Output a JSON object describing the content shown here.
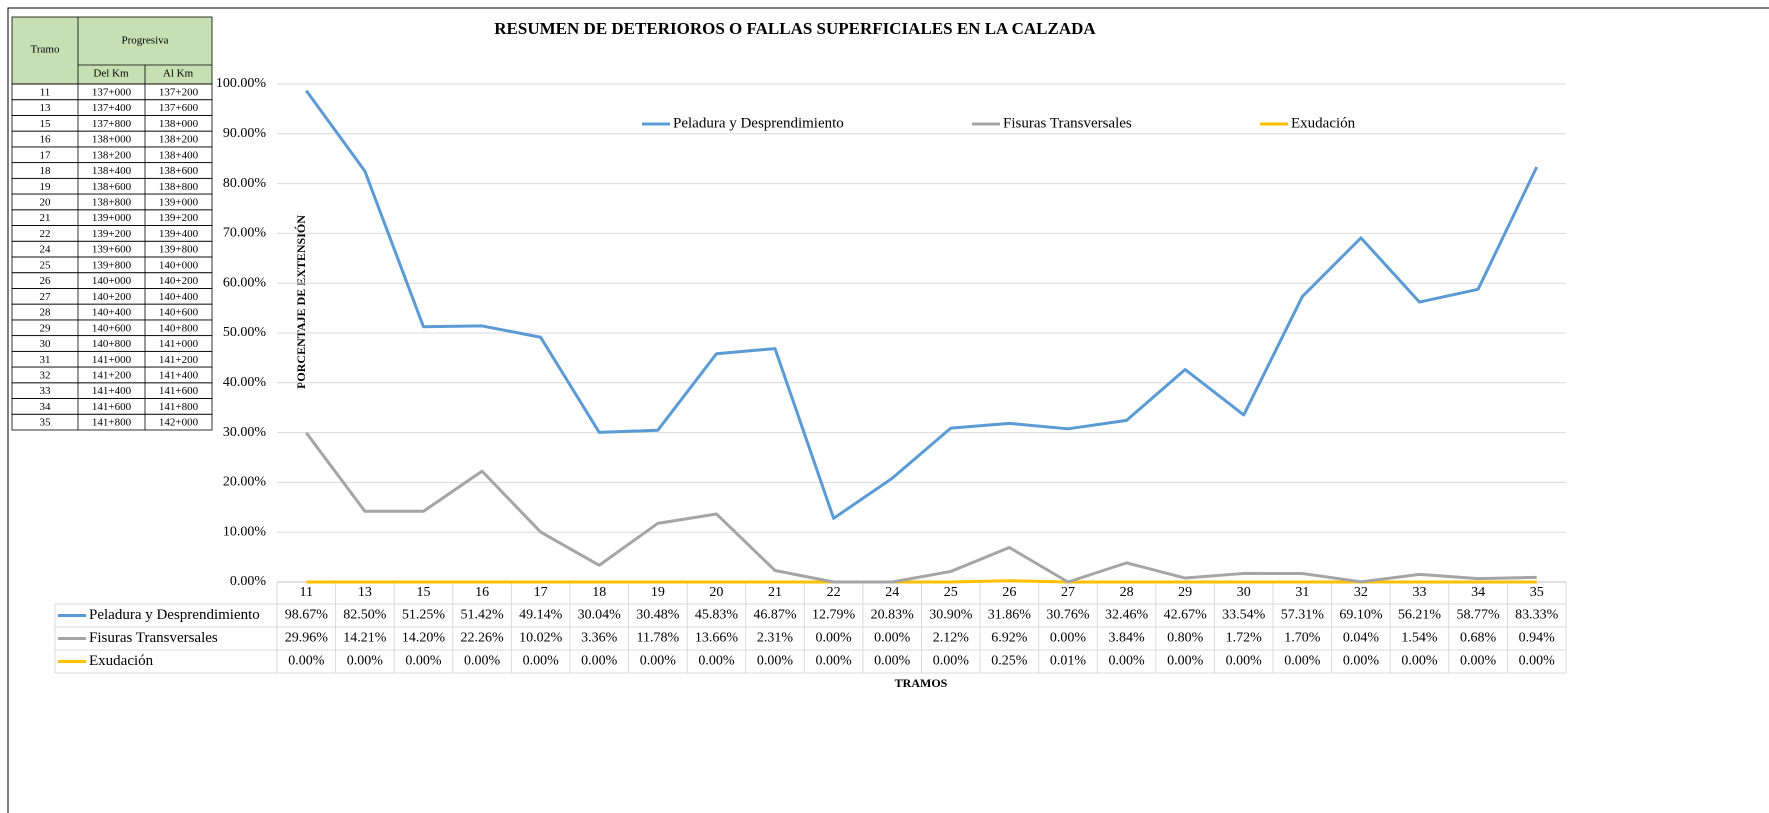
{
  "chart_data": {
    "type": "line",
    "title": "RESUMEN DE DETERIOROS O FALLAS SUPERFICIALES EN LA CALZADA",
    "ylabel": "PORCENTAJE DE EXTENSIÓN",
    "xlabel": "TRAMOS",
    "categories": [
      "11",
      "13",
      "15",
      "16",
      "17",
      "18",
      "19",
      "20",
      "21",
      "22",
      "24",
      "25",
      "26",
      "27",
      "28",
      "29",
      "30",
      "31",
      "32",
      "33",
      "34",
      "35"
    ],
    "series": [
      {
        "name": "Peladura y Desprendimiento",
        "color": "#5b9bd5",
        "values": [
          98.67,
          82.5,
          51.25,
          51.42,
          49.14,
          30.04,
          30.48,
          45.83,
          46.87,
          12.79,
          20.83,
          30.9,
          31.86,
          30.76,
          32.46,
          42.67,
          33.54,
          57.31,
          69.1,
          56.21,
          58.77,
          83.33
        ],
        "value_labels": [
          "98.67%",
          "82.50%",
          "51.25%",
          "51.42%",
          "49.14%",
          "30.04%",
          "30.48%",
          "45.83%",
          "46.87%",
          "12.79%",
          "20.83%",
          "30.90%",
          "31.86%",
          "30.76%",
          "32.46%",
          "42.67%",
          "33.54%",
          "57.31%",
          "69.10%",
          "56.21%",
          "58.77%",
          "83.33%"
        ]
      },
      {
        "name": "Fisuras Transversales",
        "color": "#a5a5a5",
        "values": [
          29.96,
          14.21,
          14.2,
          22.26,
          10.02,
          3.36,
          11.78,
          13.66,
          2.31,
          0,
          0,
          2.12,
          6.92,
          0,
          3.84,
          0.8,
          1.72,
          1.7,
          0.04,
          1.54,
          0.68,
          0.94
        ],
        "value_labels": [
          "29.96%",
          "14.21%",
          "14.20%",
          "22.26%",
          "10.02%",
          "3.36%",
          "11.78%",
          "13.66%",
          "2.31%",
          "0.00%",
          "0.00%",
          "2.12%",
          "6.92%",
          "0.00%",
          "3.84%",
          "0.80%",
          "1.72%",
          "1.70%",
          "0.04%",
          "1.54%",
          "0.68%",
          "0.94%"
        ]
      },
      {
        "name": "Exudación",
        "color": "#ffc000",
        "values": [
          0,
          0,
          0,
          0,
          0,
          0,
          0,
          0,
          0,
          0,
          0,
          0,
          0.25,
          0.01,
          0,
          0,
          0,
          0,
          0,
          0,
          0,
          0
        ],
        "value_labels": [
          "0.00%",
          "0.00%",
          "0.00%",
          "0.00%",
          "0.00%",
          "0.00%",
          "0.00%",
          "0.00%",
          "0.00%",
          "0.00%",
          "0.00%",
          "0.00%",
          "0.25%",
          "0.01%",
          "0.00%",
          "0.00%",
          "0.00%",
          "0.00%",
          "0.00%",
          "0.00%",
          "0.00%",
          "0.00%"
        ]
      }
    ],
    "ylim": [
      0,
      100
    ],
    "yticks": [
      {
        "value": 0,
        "label": "0.00%"
      },
      {
        "value": 10,
        "label": "10.00%"
      },
      {
        "value": 20,
        "label": "20.00%"
      },
      {
        "value": 30,
        "label": "30.00%"
      },
      {
        "value": 40,
        "label": "40.00%"
      },
      {
        "value": 50,
        "label": "50.00%"
      },
      {
        "value": 60,
        "label": "60.00%"
      },
      {
        "value": 70,
        "label": "70.00%"
      },
      {
        "value": 80,
        "label": "80.00%"
      },
      {
        "value": 90,
        "label": "90.00%"
      },
      {
        "value": 100,
        "label": "100.00%"
      }
    ],
    "grid": true,
    "legend": "top"
  },
  "table": {
    "headers": {
      "tramo": "Tramo",
      "progresiva": "Progresiva",
      "del": "Del Km",
      "al": "Al Km"
    },
    "rows": [
      [
        "11",
        "137+000",
        "137+200"
      ],
      [
        "13",
        "137+400",
        "137+600"
      ],
      [
        "15",
        "137+800",
        "138+000"
      ],
      [
        "16",
        "138+000",
        "138+200"
      ],
      [
        "17",
        "138+200",
        "138+400"
      ],
      [
        "18",
        "138+400",
        "138+600"
      ],
      [
        "19",
        "138+600",
        "138+800"
      ],
      [
        "20",
        "138+800",
        "139+000"
      ],
      [
        "21",
        "139+000",
        "139+200"
      ],
      [
        "22",
        "139+200",
        "139+400"
      ],
      [
        "24",
        "139+600",
        "139+800"
      ],
      [
        "25",
        "139+800",
        "140+000"
      ],
      [
        "26",
        "140+000",
        "140+200"
      ],
      [
        "27",
        "140+200",
        "140+400"
      ],
      [
        "28",
        "140+400",
        "140+600"
      ],
      [
        "29",
        "140+600",
        "140+800"
      ],
      [
        "30",
        "140+800",
        "141+000"
      ],
      [
        "31",
        "141+000",
        "141+200"
      ],
      [
        "32",
        "141+200",
        "141+400"
      ],
      [
        "33",
        "141+400",
        "141+600"
      ],
      [
        "34",
        "141+600",
        "141+800"
      ],
      [
        "35",
        "141+800",
        "142+000"
      ]
    ]
  }
}
